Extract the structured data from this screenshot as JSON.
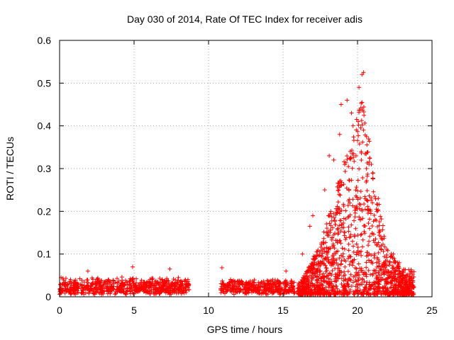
{
  "chart_data": {
    "type": "scatter",
    "title": "Day 030 of 2014, Rate Of TEC Index for receiver adis",
    "xlabel": "GPS time / hours",
    "ylabel": "ROTI / TECUs",
    "xlim": [
      0,
      25
    ],
    "ylim": [
      0,
      0.6
    ],
    "xticks": [
      0,
      5,
      10,
      15,
      20,
      25
    ],
    "xtick_labels": [
      "0",
      "5",
      "10",
      "15",
      "20",
      "25"
    ],
    "yticks": [
      0,
      0.1,
      0.2,
      0.3,
      0.4,
      0.5,
      0.6
    ],
    "ytick_labels": [
      "0",
      "0.1",
      "0.2",
      "0.3",
      "0.4",
      "0.5",
      "0.6"
    ],
    "grid": true,
    "marker": "+",
    "color": "#ff0000",
    "series": [
      {
        "name": "ROTI",
        "note": "dense scatter; representative points read from the figure",
        "segments": [
          {
            "x_start": 0.0,
            "x_end": 8.7,
            "baseline": 0.02,
            "spread": 0.03
          },
          {
            "x_start": 10.8,
            "x_end": 15.8,
            "baseline": 0.02,
            "spread": 0.025
          },
          {
            "x_start": 16.0,
            "x_end": 23.8,
            "baseline": 0.03,
            "spread": "storm"
          }
        ],
        "notable_points": [
          {
            "x": 0.1,
            "y": 0.045
          },
          {
            "x": 1.9,
            "y": 0.06
          },
          {
            "x": 4.9,
            "y": 0.07
          },
          {
            "x": 7.4,
            "y": 0.065
          },
          {
            "x": 10.9,
            "y": 0.068
          },
          {
            "x": 15.2,
            "y": 0.06
          },
          {
            "x": 16.3,
            "y": 0.1
          },
          {
            "x": 16.8,
            "y": 0.165
          },
          {
            "x": 17.0,
            "y": 0.19
          },
          {
            "x": 17.8,
            "y": 0.25
          },
          {
            "x": 18.1,
            "y": 0.33
          },
          {
            "x": 18.4,
            "y": 0.32
          },
          {
            "x": 18.8,
            "y": 0.38
          },
          {
            "x": 18.9,
            "y": 0.45
          },
          {
            "x": 19.3,
            "y": 0.46
          },
          {
            "x": 19.6,
            "y": 0.43
          },
          {
            "x": 19.7,
            "y": 0.4
          },
          {
            "x": 19.9,
            "y": 0.33
          },
          {
            "x": 20.1,
            "y": 0.49
          },
          {
            "x": 20.3,
            "y": 0.52
          },
          {
            "x": 20.4,
            "y": 0.525
          },
          {
            "x": 20.3,
            "y": 0.455
          },
          {
            "x": 20.4,
            "y": 0.39
          },
          {
            "x": 20.6,
            "y": 0.3
          },
          {
            "x": 21.0,
            "y": 0.22
          },
          {
            "x": 21.3,
            "y": 0.2
          },
          {
            "x": 21.6,
            "y": 0.12
          },
          {
            "x": 22.4,
            "y": 0.1
          },
          {
            "x": 22.8,
            "y": 0.08
          },
          {
            "x": 23.5,
            "y": 0.03
          }
        ]
      }
    ]
  }
}
